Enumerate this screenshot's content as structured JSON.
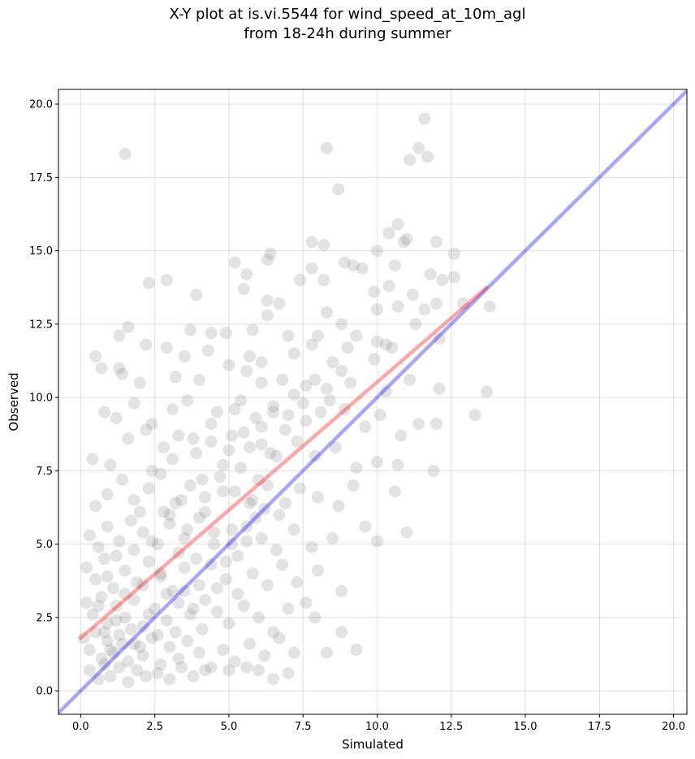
{
  "chart_data": {
    "type": "scatter",
    "title_line1": "X-Y plot at is.vi.5544 for wind_speed_at_10m_agl",
    "title_line2": "from 18-24h during summer",
    "xlabel": "Simulated",
    "ylabel": "Observed",
    "xlim": [
      -0.75,
      20.45
    ],
    "ylim": [
      -0.8,
      20.5
    ],
    "xticks": [
      0.0,
      2.5,
      5.0,
      7.5,
      10.0,
      12.5,
      15.0,
      17.5,
      20.0
    ],
    "yticks": [
      0.0,
      2.5,
      5.0,
      7.5,
      10.0,
      12.5,
      15.0,
      17.5,
      20.0
    ],
    "xtick_labels": [
      "0.0",
      "2.5",
      "5.0",
      "7.5",
      "10.0",
      "12.5",
      "15.0",
      "17.5",
      "20.0"
    ],
    "ytick_labels": [
      "0.0",
      "2.5",
      "5.0",
      "7.5",
      "10.0",
      "12.5",
      "15.0",
      "17.5",
      "20.0"
    ],
    "grid": true,
    "point_color": "#808080",
    "regression_line": {
      "x": [
        0.0,
        13.7
      ],
      "y": [
        1.8,
        13.75
      ],
      "color": "#ff0000"
    },
    "identity_line": {
      "x": [
        -0.75,
        20.45
      ],
      "y": [
        -0.75,
        20.45
      ],
      "color": "#0000ff"
    },
    "series": [
      {
        "points": [
          [
            1.5,
            18.3
          ],
          [
            8.3,
            18.5
          ],
          [
            11.4,
            18.5
          ],
          [
            11.6,
            19.5
          ],
          [
            11.1,
            18.1
          ],
          [
            11.7,
            18.2
          ],
          [
            8.7,
            17.1
          ],
          [
            5.2,
            14.6
          ],
          [
            6.3,
            14.7
          ],
          [
            6.4,
            14.9
          ],
          [
            7.8,
            15.3
          ],
          [
            8.2,
            15.2
          ],
          [
            10.0,
            15.0
          ],
          [
            10.4,
            15.6
          ],
          [
            10.9,
            15.3
          ],
          [
            11.0,
            15.4
          ],
          [
            12.0,
            15.3
          ],
          [
            12.6,
            14.9
          ],
          [
            10.7,
            15.9
          ],
          [
            2.3,
            13.9
          ],
          [
            2.9,
            14.0
          ],
          [
            3.9,
            13.5
          ],
          [
            5.5,
            13.7
          ],
          [
            5.6,
            14.2
          ],
          [
            6.3,
            13.3
          ],
          [
            7.4,
            14.0
          ],
          [
            7.8,
            14.4
          ],
          [
            8.2,
            14.0
          ],
          [
            8.9,
            14.6
          ],
          [
            9.2,
            14.5
          ],
          [
            9.5,
            14.4
          ],
          [
            9.9,
            13.6
          ],
          [
            10.4,
            13.8
          ],
          [
            10.6,
            14.5
          ],
          [
            11.8,
            14.2
          ],
          [
            12.2,
            14.0
          ],
          [
            12.6,
            14.1
          ],
          [
            6.7,
            13.2
          ],
          [
            6.3,
            12.8
          ],
          [
            8.3,
            12.9
          ],
          [
            8.8,
            12.5
          ],
          [
            10.0,
            13.0
          ],
          [
            10.7,
            13.1
          ],
          [
            11.2,
            13.5
          ],
          [
            11.6,
            13.0
          ],
          [
            12.0,
            13.2
          ],
          [
            12.9,
            13.2
          ],
          [
            13.8,
            13.1
          ],
          [
            1.3,
            12.1
          ],
          [
            1.6,
            12.4
          ],
          [
            3.7,
            12.3
          ],
          [
            4.4,
            12.2
          ],
          [
            4.9,
            12.2
          ],
          [
            5.8,
            12.3
          ],
          [
            7.0,
            12.1
          ],
          [
            8.0,
            12.1
          ],
          [
            9.3,
            12.1
          ],
          [
            11.3,
            12.5
          ],
          [
            12.1,
            12.0
          ],
          [
            10.0,
            11.9
          ],
          [
            10.3,
            11.8
          ],
          [
            0.5,
            11.4
          ],
          [
            0.7,
            11.0
          ],
          [
            1.3,
            11.0
          ],
          [
            2.2,
            11.8
          ],
          [
            2.9,
            11.7
          ],
          [
            3.5,
            11.4
          ],
          [
            4.3,
            11.6
          ],
          [
            5.0,
            11.1
          ],
          [
            5.7,
            11.4
          ],
          [
            6.1,
            11.2
          ],
          [
            7.2,
            11.5
          ],
          [
            7.8,
            11.8
          ],
          [
            8.5,
            11.2
          ],
          [
            9.0,
            11.7
          ],
          [
            9.9,
            11.3
          ],
          [
            10.5,
            11.7
          ],
          [
            1.4,
            10.8
          ],
          [
            2.0,
            10.5
          ],
          [
            3.2,
            10.7
          ],
          [
            4.0,
            10.6
          ],
          [
            5.6,
            10.9
          ],
          [
            6.1,
            10.5
          ],
          [
            6.8,
            10.6
          ],
          [
            7.6,
            10.4
          ],
          [
            8.3,
            10.3
          ],
          [
            9.1,
            10.5
          ],
          [
            10.3,
            10.2
          ],
          [
            11.1,
            10.6
          ],
          [
            12.1,
            10.3
          ],
          [
            13.7,
            10.2
          ],
          [
            0.8,
            9.5
          ],
          [
            1.2,
            9.3
          ],
          [
            1.8,
            9.8
          ],
          [
            2.4,
            9.1
          ],
          [
            3.1,
            9.6
          ],
          [
            3.6,
            9.9
          ],
          [
            4.6,
            9.5
          ],
          [
            5.2,
            9.6
          ],
          [
            5.9,
            9.3
          ],
          [
            6.5,
            9.7
          ],
          [
            7.0,
            9.4
          ],
          [
            7.5,
            9.8
          ],
          [
            8.1,
            9.5
          ],
          [
            8.9,
            9.6
          ],
          [
            9.6,
            9.0
          ],
          [
            10.1,
            9.4
          ],
          [
            10.8,
            8.7
          ],
          [
            11.4,
            9.1
          ],
          [
            12.0,
            9.1
          ],
          [
            13.3,
            9.4
          ],
          [
            0.4,
            7.9
          ],
          [
            1.0,
            7.7
          ],
          [
            1.6,
            8.6
          ],
          [
            2.2,
            8.9
          ],
          [
            2.8,
            8.3
          ],
          [
            3.3,
            8.7
          ],
          [
            3.9,
            8.1
          ],
          [
            4.4,
            8.5
          ],
          [
            5.0,
            8.2
          ],
          [
            5.5,
            8.8
          ],
          [
            6.1,
            8.4
          ],
          [
            6.6,
            8.0
          ],
          [
            7.3,
            8.5
          ],
          [
            7.9,
            8.0
          ],
          [
            8.6,
            8.3
          ],
          [
            9.3,
            7.6
          ],
          [
            10.0,
            7.8
          ],
          [
            10.7,
            7.7
          ],
          [
            11.9,
            7.5
          ],
          [
            0.5,
            6.3
          ],
          [
            0.9,
            6.7
          ],
          [
            1.4,
            7.2
          ],
          [
            1.8,
            6.5
          ],
          [
            2.3,
            6.9
          ],
          [
            2.7,
            7.4
          ],
          [
            3.2,
            6.4
          ],
          [
            3.7,
            7.0
          ],
          [
            4.2,
            6.6
          ],
          [
            4.7,
            7.3
          ],
          [
            5.2,
            6.8
          ],
          [
            5.8,
            6.5
          ],
          [
            6.3,
            7.0
          ],
          [
            6.9,
            6.4
          ],
          [
            7.4,
            6.9
          ],
          [
            8.0,
            6.6
          ],
          [
            8.7,
            6.3
          ],
          [
            9.2,
            7.0
          ],
          [
            10.6,
            6.8
          ],
          [
            0.3,
            5.3
          ],
          [
            0.6,
            4.9
          ],
          [
            0.9,
            5.6
          ],
          [
            1.3,
            5.1
          ],
          [
            1.7,
            5.8
          ],
          [
            2.1,
            5.4
          ],
          [
            2.6,
            5.0
          ],
          [
            3.0,
            5.7
          ],
          [
            3.5,
            5.2
          ],
          [
            4.0,
            5.9
          ],
          [
            4.5,
            5.4
          ],
          [
            5.1,
            5.0
          ],
          [
            5.6,
            5.6
          ],
          [
            6.1,
            5.2
          ],
          [
            6.6,
            4.8
          ],
          [
            7.2,
            5.5
          ],
          [
            7.8,
            4.9
          ],
          [
            8.5,
            5.2
          ],
          [
            9.6,
            5.6
          ],
          [
            10.0,
            5.1
          ],
          [
            11.0,
            5.4
          ],
          [
            0.2,
            4.2
          ],
          [
            0.5,
            3.8
          ],
          [
            0.8,
            4.5
          ],
          [
            1.1,
            3.5
          ],
          [
            1.5,
            4.1
          ],
          [
            1.9,
            3.7
          ],
          [
            2.3,
            4.4
          ],
          [
            2.7,
            3.9
          ],
          [
            3.1,
            3.4
          ],
          [
            3.5,
            4.2
          ],
          [
            4.0,
            3.6
          ],
          [
            4.4,
            4.3
          ],
          [
            4.9,
            3.8
          ],
          [
            5.3,
            3.3
          ],
          [
            5.8,
            4.0
          ],
          [
            6.3,
            3.6
          ],
          [
            6.8,
            4.3
          ],
          [
            7.3,
            3.7
          ],
          [
            8.0,
            4.1
          ],
          [
            8.8,
            3.4
          ],
          [
            0.2,
            3.0
          ],
          [
            0.4,
            2.6
          ],
          [
            0.7,
            3.2
          ],
          [
            0.9,
            2.3
          ],
          [
            1.2,
            2.9
          ],
          [
            1.5,
            2.5
          ],
          [
            1.8,
            3.1
          ],
          [
            2.1,
            2.2
          ],
          [
            2.5,
            2.8
          ],
          [
            2.9,
            2.4
          ],
          [
            3.3,
            3.0
          ],
          [
            3.7,
            2.6
          ],
          [
            4.1,
            2.1
          ],
          [
            4.6,
            2.7
          ],
          [
            5.0,
            2.3
          ],
          [
            5.5,
            2.9
          ],
          [
            6.0,
            2.5
          ],
          [
            6.5,
            2.0
          ],
          [
            7.0,
            2.8
          ],
          [
            7.6,
            3.0
          ],
          [
            7.9,
            2.5
          ],
          [
            8.8,
            2.0
          ],
          [
            0.1,
            1.8
          ],
          [
            0.3,
            1.4
          ],
          [
            0.5,
            2.0
          ],
          [
            0.7,
            1.1
          ],
          [
            0.9,
            1.7
          ],
          [
            1.1,
            1.3
          ],
          [
            1.3,
            1.9
          ],
          [
            1.6,
            1.0
          ],
          [
            1.8,
            1.6
          ],
          [
            2.1,
            1.2
          ],
          [
            2.4,
            1.8
          ],
          [
            2.7,
            0.9
          ],
          [
            3.0,
            1.5
          ],
          [
            3.3,
            1.1
          ],
          [
            3.6,
            1.7
          ],
          [
            4.0,
            1.3
          ],
          [
            4.4,
            0.8
          ],
          [
            4.8,
            1.4
          ],
          [
            5.2,
            1.0
          ],
          [
            5.7,
            1.6
          ],
          [
            6.2,
            1.2
          ],
          [
            6.7,
            1.8
          ],
          [
            7.2,
            1.3
          ],
          [
            8.3,
            1.3
          ],
          [
            9.3,
            1.4
          ],
          [
            0.3,
            0.7
          ],
          [
            0.6,
            0.4
          ],
          [
            0.8,
            0.9
          ],
          [
            1.0,
            0.5
          ],
          [
            1.3,
            0.8
          ],
          [
            1.6,
            0.3
          ],
          [
            1.9,
            0.7
          ],
          [
            2.2,
            0.5
          ],
          [
            2.6,
            0.6
          ],
          [
            3.0,
            0.4
          ],
          [
            3.4,
            0.8
          ],
          [
            3.8,
            0.5
          ],
          [
            4.2,
            0.7
          ],
          [
            5.0,
            0.7
          ],
          [
            5.6,
            0.8
          ],
          [
            6.0,
            0.7
          ],
          [
            6.5,
            0.4
          ],
          [
            7.0,
            0.6
          ],
          [
            0.6,
            2.9
          ],
          [
            0.8,
            2.0
          ],
          [
            1.0,
            1.4
          ],
          [
            1.2,
            2.4
          ],
          [
            1.4,
            1.6
          ],
          [
            1.7,
            2.1
          ],
          [
            2.0,
            1.5
          ],
          [
            2.3,
            2.6
          ],
          [
            2.6,
            1.9
          ],
          [
            2.9,
            3.3
          ],
          [
            3.2,
            2.0
          ],
          [
            3.5,
            3.4
          ],
          [
            3.8,
            2.8
          ],
          [
            4.2,
            3.1
          ],
          [
            4.6,
            3.5
          ],
          [
            4.9,
            4.4
          ],
          [
            5.3,
            4.6
          ],
          [
            5.6,
            5.1
          ],
          [
            5.9,
            5.9
          ],
          [
            6.2,
            6.2
          ],
          [
            0.9,
            3.9
          ],
          [
            1.2,
            4.6
          ],
          [
            1.5,
            3.3
          ],
          [
            1.8,
            4.8
          ],
          [
            2.1,
            3.6
          ],
          [
            2.4,
            5.1
          ],
          [
            2.7,
            4.0
          ],
          [
            3.0,
            6.0
          ],
          [
            3.3,
            4.7
          ],
          [
            3.6,
            5.5
          ],
          [
            3.9,
            4.5
          ],
          [
            4.2,
            6.1
          ],
          [
            4.5,
            5.0
          ],
          [
            4.8,
            6.8
          ],
          [
            5.1,
            5.5
          ],
          [
            5.4,
            7.6
          ],
          [
            5.7,
            6.4
          ],
          [
            6.0,
            7.2
          ],
          [
            6.4,
            8.1
          ],
          [
            6.7,
            6.0
          ],
          [
            2.0,
            6.1
          ],
          [
            2.4,
            7.5
          ],
          [
            2.8,
            6.1
          ],
          [
            3.1,
            7.9
          ],
          [
            3.4,
            6.5
          ],
          [
            3.8,
            8.6
          ],
          [
            4.1,
            7.2
          ],
          [
            4.4,
            9.1
          ],
          [
            4.8,
            7.7
          ],
          [
            5.1,
            8.7
          ],
          [
            5.4,
            9.9
          ],
          [
            5.7,
            8.3
          ],
          [
            6.1,
            9.0
          ],
          [
            6.5,
            9.5
          ],
          [
            6.9,
            8.9
          ],
          [
            7.2,
            10.1
          ],
          [
            7.6,
            9.2
          ],
          [
            7.9,
            10.6
          ],
          [
            8.4,
            9.9
          ],
          [
            8.8,
            10.9
          ]
        ]
      }
    ]
  }
}
